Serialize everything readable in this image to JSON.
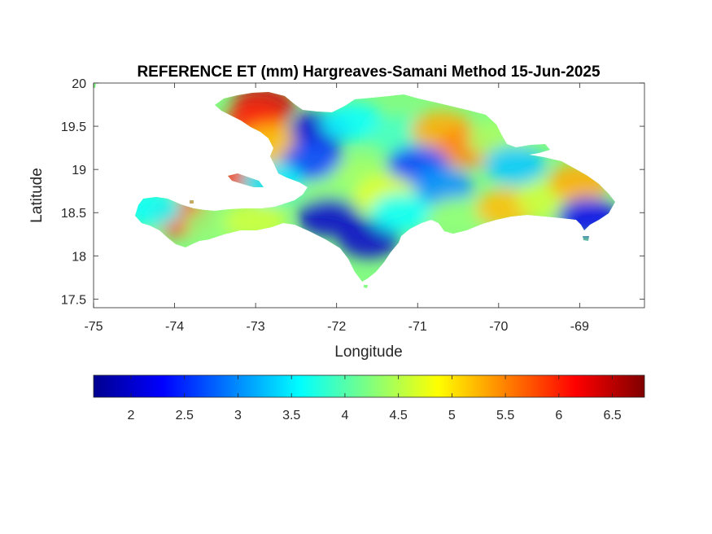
{
  "chart_data": {
    "type": "heatmap",
    "title": "REFERENCE ET (mm) Hargreaves-Samani Method  15-Jun-2025",
    "xlabel": "Longitude",
    "ylabel": "Latitude",
    "xlim": [
      -75,
      -68.2
    ],
    "ylim": [
      17.4,
      20
    ],
    "xticks": [
      -75,
      -74,
      -73,
      -72,
      -71,
      -70,
      -69
    ],
    "xtick_labels": [
      "-75",
      "-74",
      "-73",
      "-72",
      "-71",
      "-70",
      "-69"
    ],
    "yticks": [
      17.5,
      18,
      18.5,
      19,
      19.5,
      20
    ],
    "ytick_labels": [
      "17.5",
      "18",
      "18.5",
      "19",
      "19.5",
      "20"
    ],
    "colorbar": {
      "colormap": "jet",
      "range": [
        1.65,
        6.8
      ],
      "ticks": [
        2,
        2.5,
        3,
        3.5,
        4,
        4.5,
        5,
        5.5,
        6,
        6.5
      ],
      "tick_labels": [
        "2",
        "2.5",
        "3",
        "3.5",
        "4",
        "4.5",
        "5",
        "5.5",
        "6",
        "6.5"
      ],
      "orientation": "horizontal",
      "placement": "below"
    },
    "region": "Hispaniola (Haiti and Dominican Republic)",
    "field_regions": [
      {
        "lon": -72.9,
        "lat": 19.75,
        "value": 6.4
      },
      {
        "lon": -73.0,
        "lat": 19.55,
        "value": 6.0
      },
      {
        "lon": -72.8,
        "lat": 19.3,
        "value": 5.2
      },
      {
        "lon": -72.2,
        "lat": 19.45,
        "value": 2.1
      },
      {
        "lon": -72.3,
        "lat": 19.1,
        "value": 2.6
      },
      {
        "lon": -71.8,
        "lat": 19.55,
        "value": 3.6
      },
      {
        "lon": -71.2,
        "lat": 19.4,
        "value": 3.9
      },
      {
        "lon": -70.7,
        "lat": 19.45,
        "value": 5.3
      },
      {
        "lon": -70.4,
        "lat": 19.25,
        "value": 5.5
      },
      {
        "lon": -70.0,
        "lat": 19.35,
        "value": 4.4
      },
      {
        "lon": -71.0,
        "lat": 19.05,
        "value": 2.6
      },
      {
        "lon": -70.7,
        "lat": 18.8,
        "value": 3.0
      },
      {
        "lon": -71.7,
        "lat": 18.9,
        "value": 4.4
      },
      {
        "lon": -72.0,
        "lat": 18.7,
        "value": 4.3
      },
      {
        "lon": -71.4,
        "lat": 18.7,
        "value": 4.7
      },
      {
        "lon": -72.1,
        "lat": 18.45,
        "value": 2.0
      },
      {
        "lon": -71.6,
        "lat": 18.2,
        "value": 2.0
      },
      {
        "lon": -71.2,
        "lat": 18.5,
        "value": 3.6
      },
      {
        "lon": -70.5,
        "lat": 18.45,
        "value": 4.3
      },
      {
        "lon": -69.9,
        "lat": 18.55,
        "value": 5.2
      },
      {
        "lon": -69.4,
        "lat": 18.65,
        "value": 4.6
      },
      {
        "lon": -69.0,
        "lat": 18.85,
        "value": 5.3
      },
      {
        "lon": -68.9,
        "lat": 18.45,
        "value": 2.2
      },
      {
        "lon": -69.8,
        "lat": 19.05,
        "value": 3.3
      },
      {
        "lon": -73.9,
        "lat": 18.45,
        "value": 6.1
      },
      {
        "lon": -74.3,
        "lat": 18.55,
        "value": 3.6
      },
      {
        "lon": -73.5,
        "lat": 18.35,
        "value": 4.3
      },
      {
        "lon": -73.0,
        "lat": 18.4,
        "value": 4.6
      },
      {
        "lon": -73.1,
        "lat": 18.9,
        "value": 6.0
      },
      {
        "lon": -72.8,
        "lat": 18.85,
        "value": 3.5
      }
    ]
  }
}
